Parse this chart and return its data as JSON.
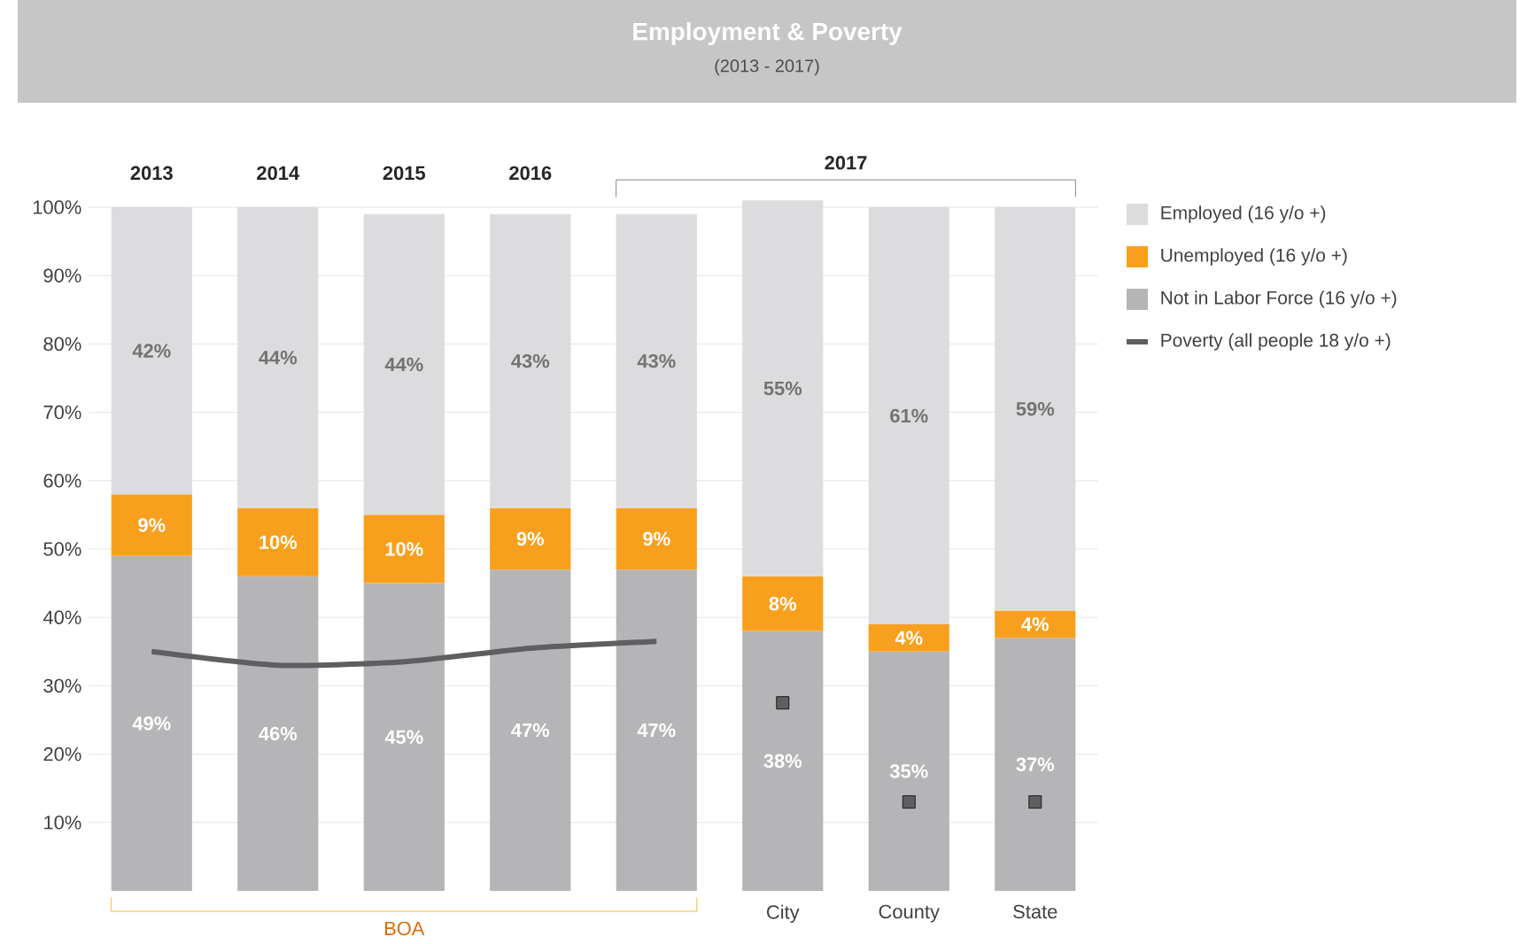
{
  "chart_data": {
    "type": "bar",
    "stacked": true,
    "title": "Employment & Poverty",
    "subtitle": "(2013 - 2017)",
    "categories": [
      null,
      null,
      null,
      null,
      null,
      "City",
      "County",
      "State"
    ],
    "series": [
      {
        "name": "Not in Labor Force (16 y/o +)",
        "color": "#b5b5b8",
        "values": [
          49,
          46,
          45,
          47,
          47,
          38,
          35,
          37
        ],
        "value_labels": [
          "49%",
          "46%",
          "45%",
          "47%",
          "47%",
          "38%",
          "35%",
          "37%"
        ]
      },
      {
        "name": "Unemployed (16 y/o +)",
        "color": "#f8a01e",
        "values": [
          9,
          10,
          10,
          9,
          9,
          8,
          4,
          4
        ],
        "value_labels": [
          "9%",
          "10%",
          "10%",
          "9%",
          "9%",
          "8%",
          "4%",
          "4%"
        ]
      },
      {
        "name": "Employed (16 y/o +)",
        "color": "#dcdcde",
        "values": [
          42,
          44,
          44,
          43,
          43,
          55,
          61,
          59
        ],
        "value_labels": [
          "42%",
          "44%",
          "44%",
          "43%",
          "43%",
          "55%",
          "61%",
          "59%"
        ]
      },
      {
        "name": "Poverty (all people 18 y/o +)",
        "type": "line",
        "color": "#5f5f62",
        "values": [
          35,
          33,
          33.5,
          35.5,
          36.5,
          null,
          null,
          null
        ]
      },
      {
        "type": "scatter",
        "marker": "square",
        "color": "#5f5f62",
        "values": [
          null,
          null,
          null,
          null,
          null,
          27.5,
          13,
          13
        ]
      }
    ],
    "ylim": [
      0,
      101
    ],
    "yticks": [
      {
        "value": 10,
        "label": "10%"
      },
      {
        "value": 20,
        "label": "20%"
      },
      {
        "value": 30,
        "label": "30%"
      },
      {
        "value": 40,
        "label": "40%"
      },
      {
        "value": 50,
        "label": "50%"
      },
      {
        "value": 60,
        "label": "60%"
      },
      {
        "value": 70,
        "label": "70%"
      },
      {
        "value": 80,
        "label": "80%"
      },
      {
        "value": 90,
        "label": "90%"
      },
      {
        "value": 100,
        "label": "100%"
      }
    ],
    "grid": "y",
    "legend": "right",
    "annotations": [
      "2013",
      "2014",
      "2015",
      "2016",
      "2017",
      "BOA"
    ]
  }
}
